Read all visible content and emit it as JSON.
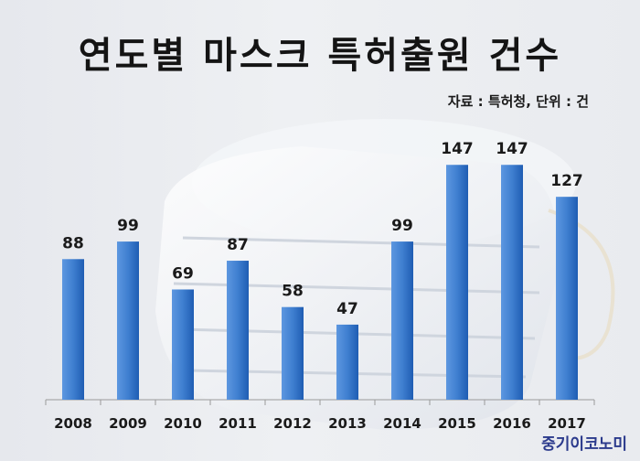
{
  "title": "연도별 마스크 특허출원 건수",
  "source": "자료 : 특허청, 단위 : 건",
  "brand": "중기이코노미",
  "colors": {
    "bar": "#3f7fd0",
    "bar_dark": "#1f5db3",
    "axis": "#9a9a9a"
  },
  "chart_data": {
    "type": "bar",
    "title": "연도별 마스크 특허출원 건수",
    "categories": [
      "2008",
      "2009",
      "2010",
      "2011",
      "2012",
      "2013",
      "2014",
      "2015",
      "2016",
      "2017"
    ],
    "values": [
      88,
      99,
      69,
      87,
      58,
      47,
      99,
      147,
      147,
      127
    ],
    "ylim": [
      0,
      150
    ],
    "grid": false,
    "data_labels": true
  }
}
